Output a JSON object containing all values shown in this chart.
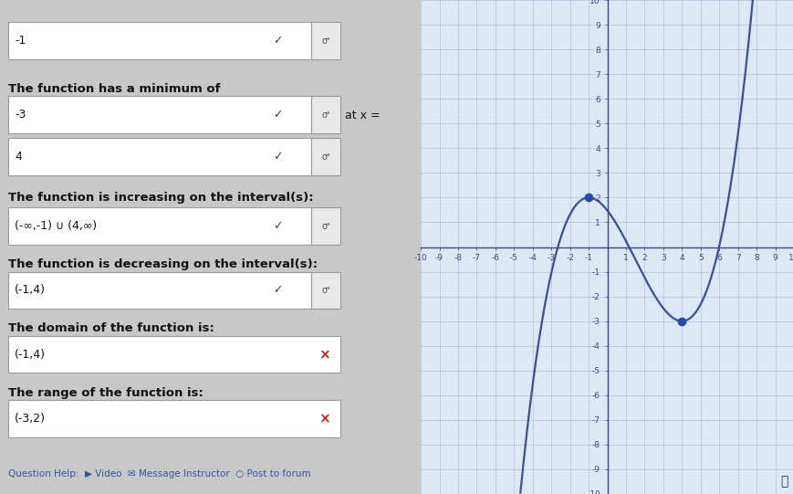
{
  "figsize": [
    8.7,
    5.41
  ],
  "dpi": 100,
  "bg_color": "#c8c8c8",
  "left_bg": "#d0ccc8",
  "graph_bg": "#e8eef5",
  "graph_paper_color": "#dde8f5",
  "curve_color": "#3a5090",
  "dot_color": "#2a4aaa",
  "grid_color": "#8899cc",
  "axis_color": "#3a4a80",
  "tick_color": "#3a4a80",
  "xlim": [
    -10,
    10
  ],
  "ylim": [
    -10,
    10
  ],
  "local_max": [
    -1,
    2
  ],
  "local_min": [
    4,
    -3
  ],
  "coeff_a": 0.08,
  "coeff_b": -0.36,
  "coeff_c": -0.96,
  "coeff_d": 1.48,
  "text_lines": [
    "-1",
    "The function has a minimum of",
    "-3",
    "at x =",
    "4",
    "The function is increasing on the interval(s):",
    "(-∞,-1) ∪ (4,∞)",
    "The function is decreasing on the interval(s):",
    "(-1,4)",
    "The domain of the function is:",
    "(-1,4)",
    "The range of the function is:",
    "(-3,2)"
  ],
  "box_color": "#ffffff",
  "box_edge_color": "#888888",
  "check_color": "#444444",
  "cross_color": "#cc2222",
  "label_color": "#111111",
  "sigma_color": "#555555"
}
